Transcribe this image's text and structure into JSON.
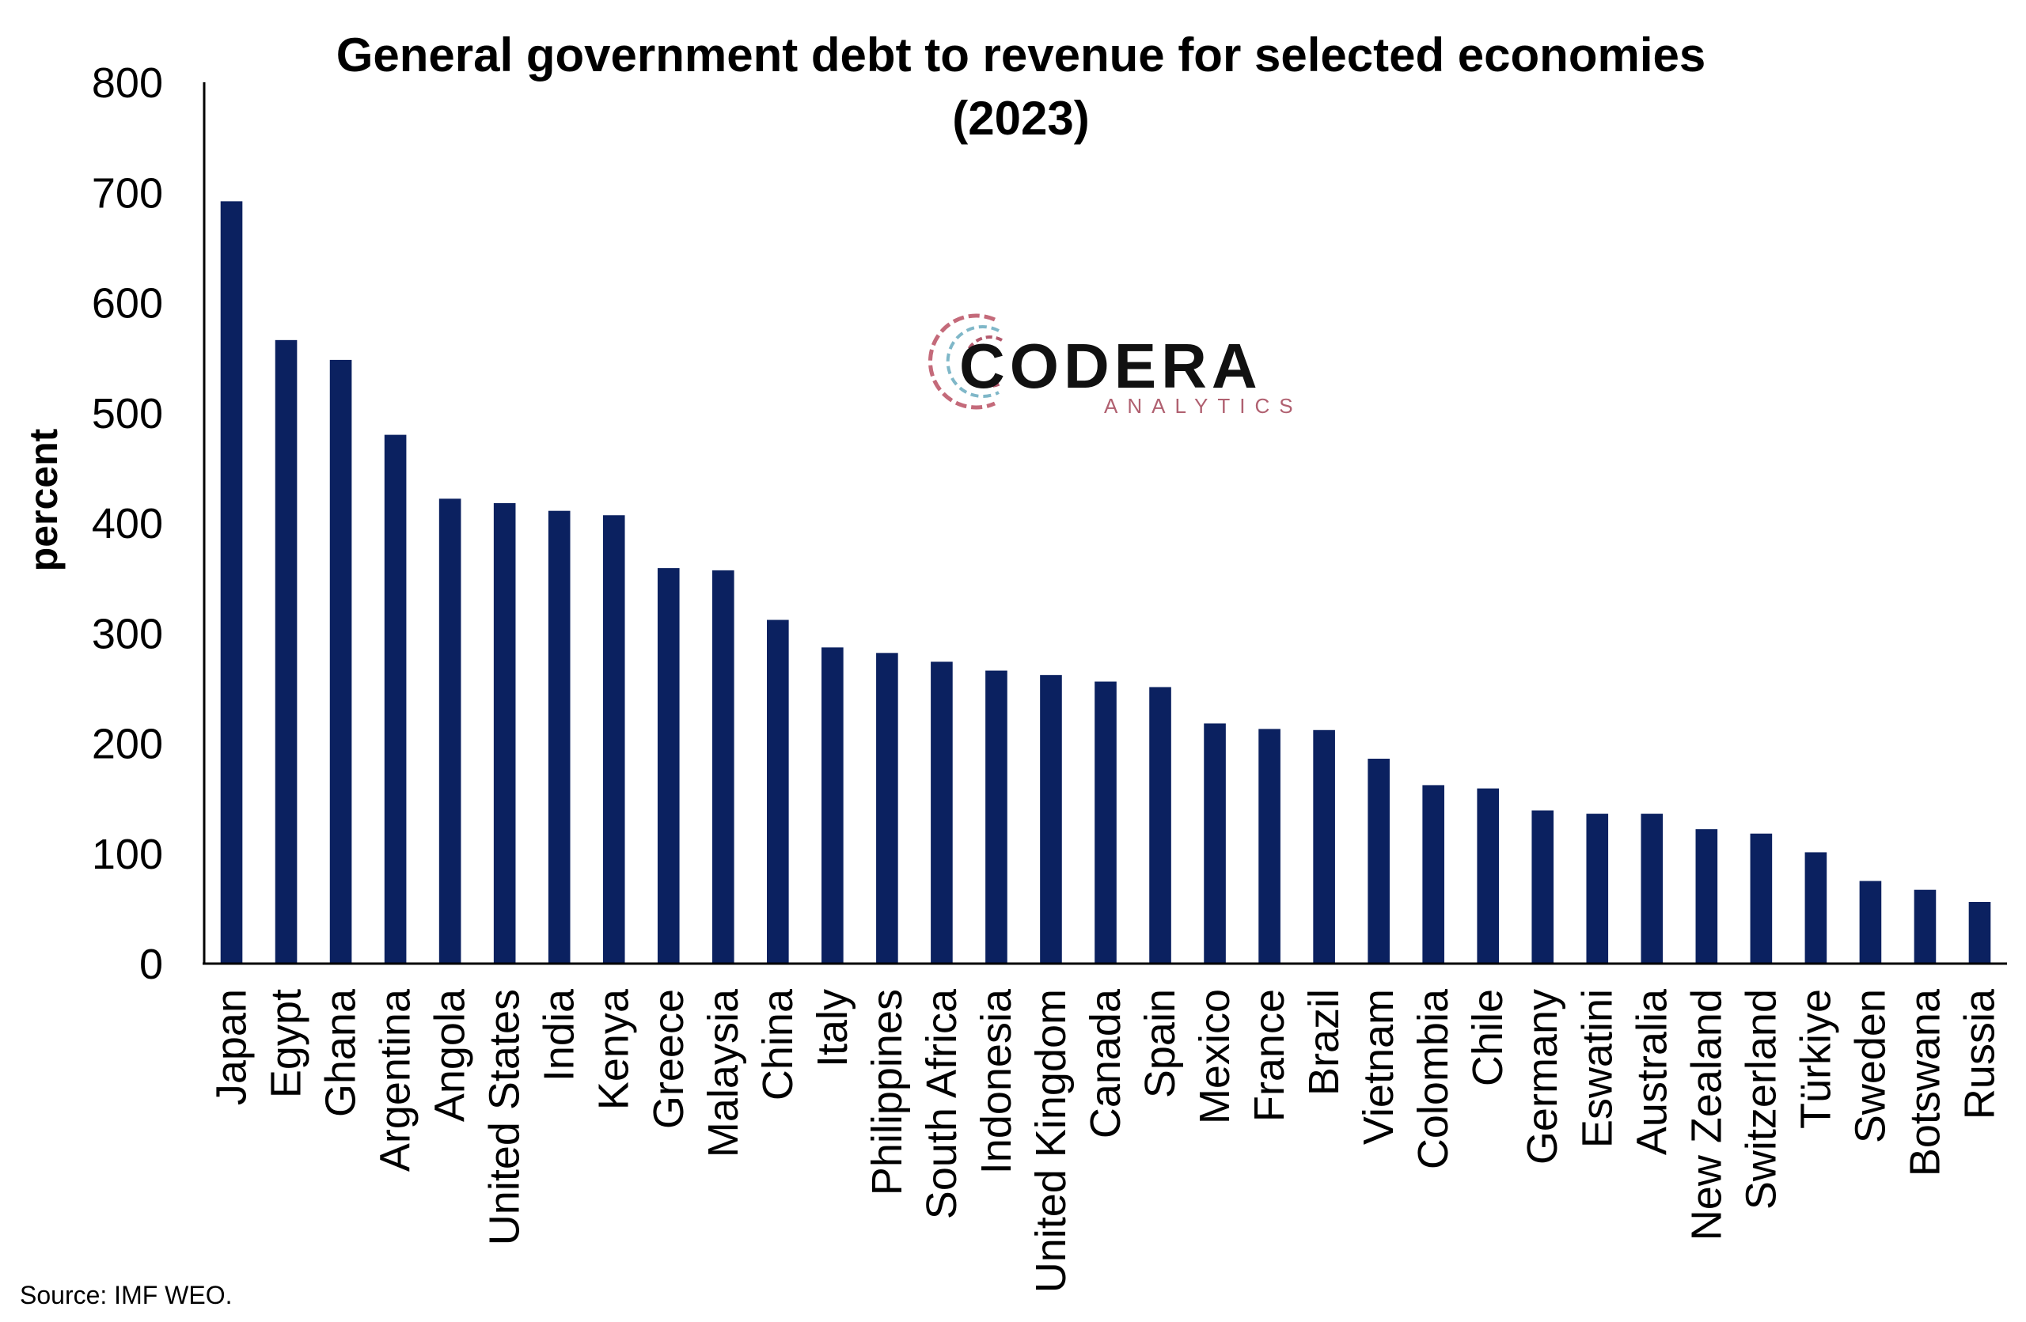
{
  "colors": {
    "bar": "#0b2160",
    "axis": "#000000",
    "logo_text": "#111111",
    "logo_sub": "#b06070"
  },
  "source": "Source: IMF WEO.",
  "logo": {
    "word": "CODERA",
    "sub": "ANALYTICS"
  },
  "chart_data": {
    "type": "bar",
    "title_lines": [
      "General government debt to revenue for selected economies",
      "(2023)"
    ],
    "xlabel": "",
    "ylabel": "percent",
    "ylim": [
      0,
      800
    ],
    "yticks": [
      0,
      100,
      200,
      300,
      400,
      500,
      600,
      700,
      800
    ],
    "legend": "none",
    "grid": false,
    "categories": [
      "Japan",
      "Egypt",
      "Ghana",
      "Argentina",
      "Angola",
      "United States",
      "India",
      "Kenya",
      "Greece",
      "Malaysia",
      "China",
      "Italy",
      "Philippines",
      "South Africa",
      "Indonesia",
      "United Kingdom",
      "Canada",
      "Spain",
      "Mexico",
      "France",
      "Brazil",
      "Vietnam",
      "Colombia",
      "Chile",
      "Germany",
      "Eswatini",
      "Australia",
      "New Zealand",
      "Switzerland",
      "Türkiye",
      "Sweden",
      "Botswana",
      "Russia"
    ],
    "values": [
      692,
      566,
      548,
      480,
      422,
      418,
      411,
      407,
      359,
      357,
      312,
      287,
      282,
      274,
      266,
      262,
      256,
      251,
      218,
      213,
      212,
      186,
      162,
      159,
      139,
      136,
      136,
      122,
      118,
      101,
      75,
      67,
      56
    ]
  }
}
